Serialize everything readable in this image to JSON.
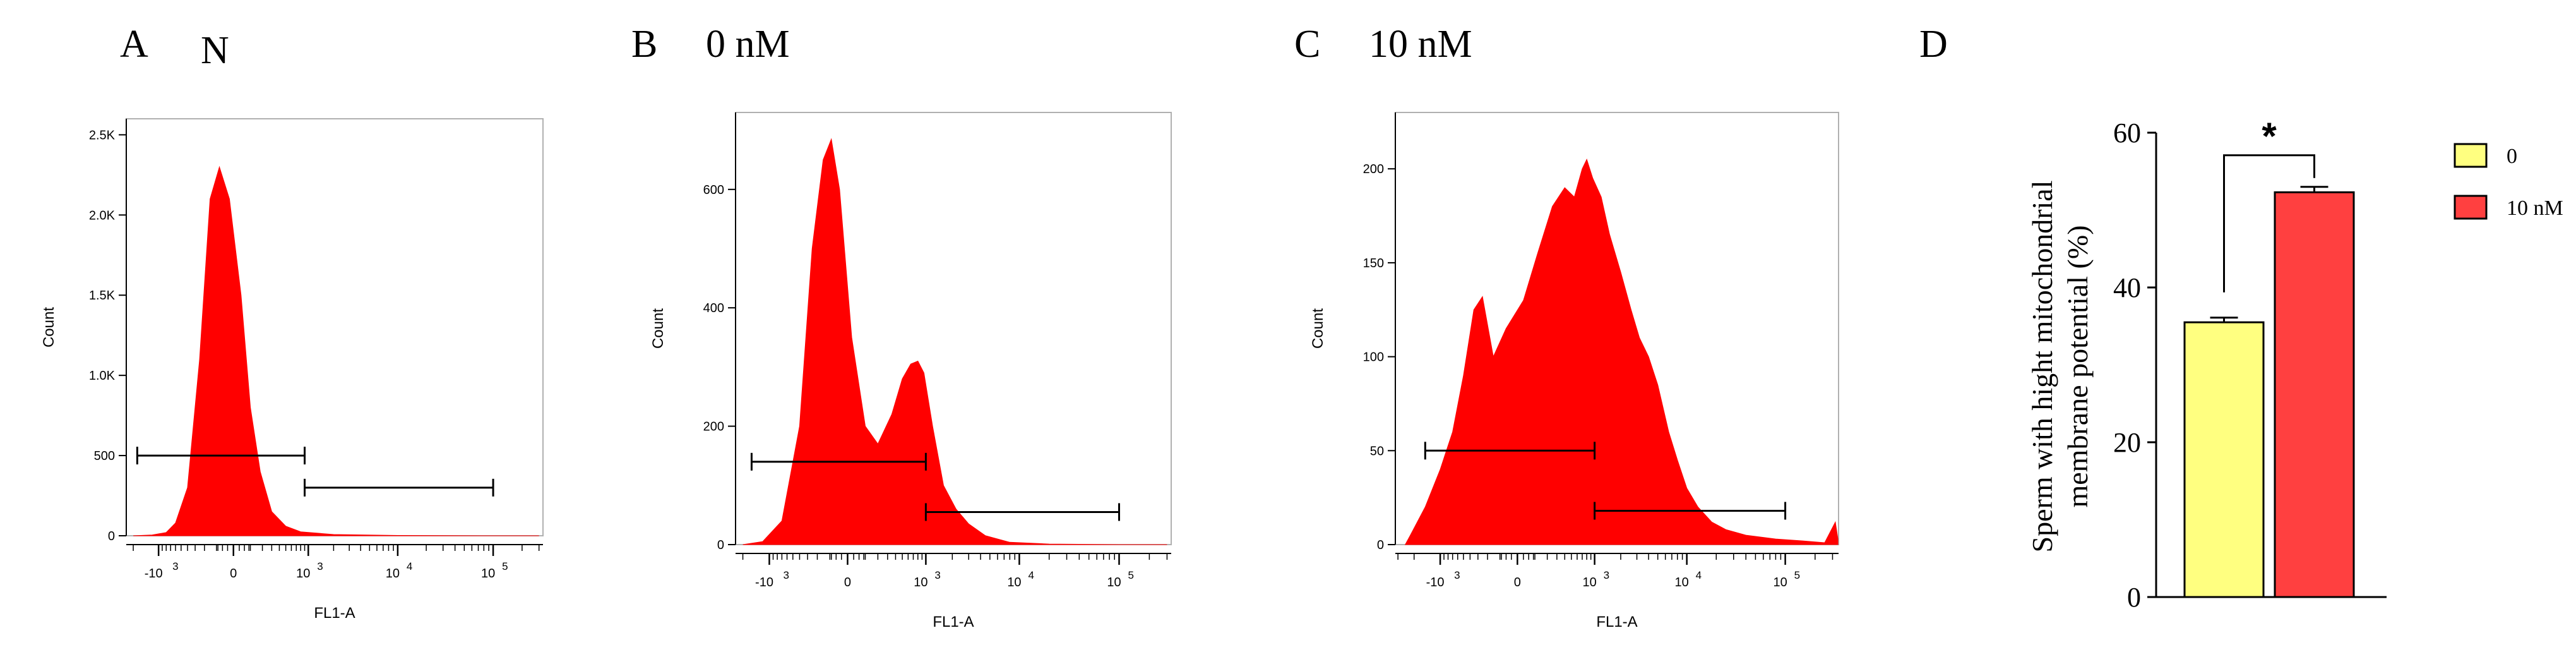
{
  "panels": {
    "A": {
      "letter": "A",
      "title": "N"
    },
    "B": {
      "letter": "B",
      "title": "0 nM"
    },
    "C": {
      "letter": "C",
      "title": "10 nM"
    },
    "D": {
      "letter": "D"
    }
  },
  "colors": {
    "fill": "#ff0000",
    "bar0": "#ffff80",
    "bar10": "#ff4040",
    "axis": "#000000"
  },
  "chart_data": [
    {
      "id": "A",
      "type": "area",
      "title": "N",
      "xlabel": "FL1-A",
      "ylabel": "Count",
      "xscale": "biexponential",
      "xticks": [
        {
          "label": "-10",
          "sup": "3",
          "value": -1000
        },
        {
          "label": "0",
          "sup": "",
          "value": 0
        },
        {
          "label": "10",
          "sup": "3",
          "value": 1000
        },
        {
          "label": "10",
          "sup": "4",
          "value": 10000
        },
        {
          "label": "10",
          "sup": "5",
          "value": 100000
        }
      ],
      "ylim": [
        0,
        2600
      ],
      "yticks": [
        {
          "label": "0",
          "value": 0
        },
        {
          "label": "500",
          "value": 500
        },
        {
          "label": "1.0K",
          "value": 1000
        },
        {
          "label": "1.5K",
          "value": 1500
        },
        {
          "label": "2.0K",
          "value": 2000
        },
        {
          "label": "2.5K",
          "value": 2500
        }
      ],
      "histogram": [
        [
          -2000,
          0
        ],
        [
          -1200,
          5
        ],
        [
          -800,
          20
        ],
        [
          -600,
          80
        ],
        [
          -400,
          300
        ],
        [
          -250,
          1100
        ],
        [
          -150,
          2100
        ],
        [
          -80,
          2300
        ],
        [
          -20,
          2100
        ],
        [
          40,
          1500
        ],
        [
          100,
          800
        ],
        [
          180,
          400
        ],
        [
          300,
          150
        ],
        [
          500,
          60
        ],
        [
          800,
          25
        ],
        [
          2000,
          8
        ],
        [
          10000,
          2
        ],
        [
          80000,
          0
        ],
        [
          300000,
          0
        ]
      ],
      "gates": [
        {
          "from": -1800,
          "to": 900,
          "level": 500
        },
        {
          "from": 900,
          "to": 100000,
          "level": 300
        }
      ]
    },
    {
      "id": "B",
      "type": "area",
      "title": "0 nM",
      "xlabel": "FL1-A",
      "ylabel": "Count",
      "xscale": "biexponential",
      "xticks": [
        {
          "label": "-10",
          "sup": "3",
          "value": -1000
        },
        {
          "label": "0",
          "sup": "",
          "value": 0
        },
        {
          "label": "10",
          "sup": "3",
          "value": 1000
        },
        {
          "label": "10",
          "sup": "4",
          "value": 10000
        },
        {
          "label": "10",
          "sup": "5",
          "value": 100000
        }
      ],
      "ylim": [
        0,
        730
      ],
      "yticks": [
        {
          "label": "0",
          "value": 0
        },
        {
          "label": "200",
          "value": 200
        },
        {
          "label": "400",
          "value": 400
        },
        {
          "label": "600",
          "value": 600
        }
      ],
      "histogram": [
        [
          -2000,
          0
        ],
        [
          -1200,
          5
        ],
        [
          -700,
          40
        ],
        [
          -400,
          200
        ],
        [
          -250,
          500
        ],
        [
          -150,
          650
        ],
        [
          -90,
          685
        ],
        [
          -40,
          600
        ],
        [
          20,
          350
        ],
        [
          100,
          200
        ],
        [
          200,
          170
        ],
        [
          350,
          220
        ],
        [
          500,
          280
        ],
        [
          650,
          305
        ],
        [
          800,
          310
        ],
        [
          950,
          290
        ],
        [
          1200,
          200
        ],
        [
          1600,
          100
        ],
        [
          2200,
          60
        ],
        [
          3000,
          35
        ],
        [
          4500,
          15
        ],
        [
          8000,
          4
        ],
        [
          20000,
          1
        ],
        [
          100000,
          0
        ],
        [
          300000,
          0
        ]
      ],
      "gates": [
        {
          "from": -1600,
          "to": 1000,
          "level": 140
        },
        {
          "from": 1000,
          "to": 100000,
          "level": 55
        }
      ]
    },
    {
      "id": "C",
      "type": "area",
      "title": "10 nM",
      "xlabel": "FL1-A",
      "ylabel": "Count",
      "xscale": "biexponential",
      "xticks": [
        {
          "label": "-10",
          "sup": "3",
          "value": -1000
        },
        {
          "label": "0",
          "sup": "",
          "value": 0
        },
        {
          "label": "10",
          "sup": "3",
          "value": 1000
        },
        {
          "label": "10",
          "sup": "4",
          "value": 10000
        },
        {
          "label": "10",
          "sup": "5",
          "value": 100000
        }
      ],
      "ylim": [
        0,
        230
      ],
      "yticks": [
        {
          "label": "0",
          "value": 0
        },
        {
          "label": "50",
          "value": 50
        },
        {
          "label": "100",
          "value": 100
        },
        {
          "label": "150",
          "value": 150
        },
        {
          "label": "200",
          "value": 200
        }
      ],
      "histogram": [
        [
          -2500,
          0
        ],
        [
          -2200,
          5
        ],
        [
          -1500,
          20
        ],
        [
          -1000,
          40
        ],
        [
          -700,
          60
        ],
        [
          -500,
          90
        ],
        [
          -350,
          125
        ],
        [
          -250,
          132
        ],
        [
          -150,
          100
        ],
        [
          -60,
          115
        ],
        [
          30,
          130
        ],
        [
          120,
          155
        ],
        [
          250,
          180
        ],
        [
          400,
          190
        ],
        [
          550,
          185
        ],
        [
          700,
          200
        ],
        [
          800,
          205
        ],
        [
          950,
          195
        ],
        [
          1200,
          185
        ],
        [
          1500,
          165
        ],
        [
          2000,
          145
        ],
        [
          2600,
          125
        ],
        [
          3200,
          110
        ],
        [
          4000,
          100
        ],
        [
          5000,
          85
        ],
        [
          6500,
          60
        ],
        [
          8000,
          45
        ],
        [
          10000,
          30
        ],
        [
          13000,
          20
        ],
        [
          18000,
          12
        ],
        [
          25000,
          8
        ],
        [
          40000,
          5
        ],
        [
          80000,
          3
        ],
        [
          150000,
          2
        ],
        [
          250000,
          1
        ],
        [
          320000,
          12
        ],
        [
          340000,
          3
        ]
      ],
      "gates": [
        {
          "from": -1500,
          "to": 1000,
          "level": 50
        },
        {
          "from": 1000,
          "to": 100000,
          "level": 18
        }
      ]
    },
    {
      "id": "D",
      "type": "bar",
      "title": "",
      "ylabel_lines": [
        "Sperm with hight mitochondrial",
        "membrane potential (%)"
      ],
      "categories": [
        "0",
        "10 nM"
      ],
      "values": [
        35.5,
        52.3
      ],
      "errors": [
        0.6,
        0.7
      ],
      "ylim": [
        0,
        60
      ],
      "yticks": [
        0,
        20,
        40,
        60
      ],
      "legend": [
        {
          "label": "0",
          "color": "#ffff80"
        },
        {
          "label": "10 nM",
          "color": "#ff4040"
        }
      ],
      "significance": "*",
      "legend_position": "right"
    }
  ]
}
